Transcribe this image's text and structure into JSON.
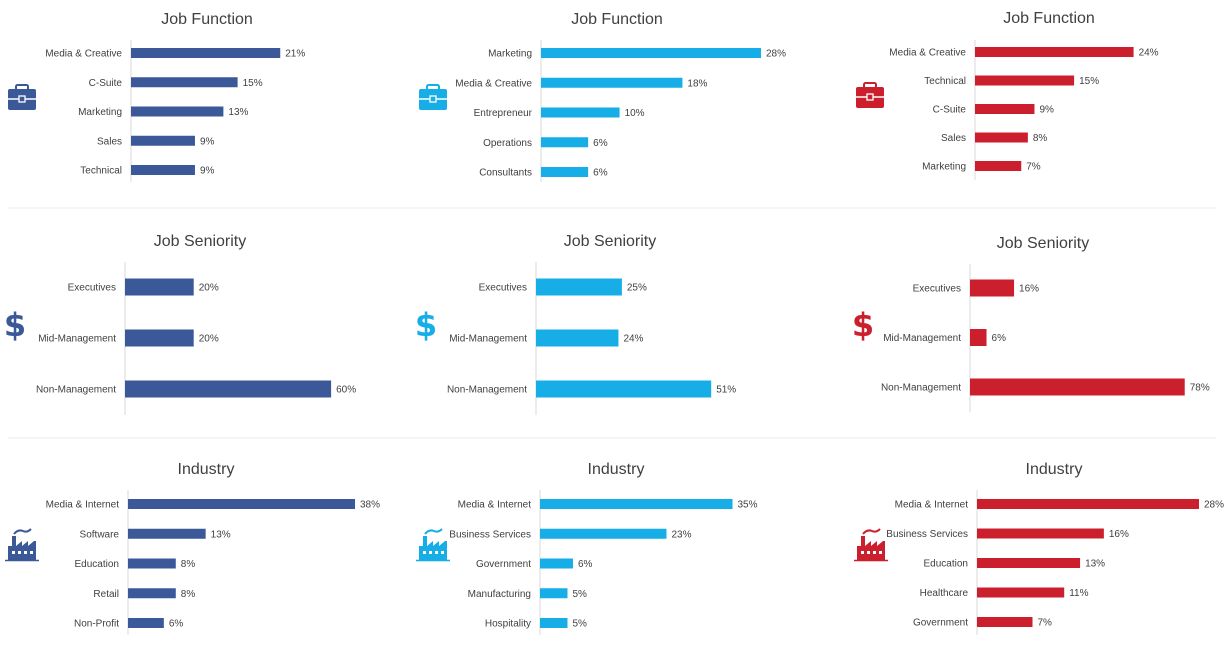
{
  "colors": {
    "navy": "#3b5998",
    "sky": "#17aee8",
    "red": "#cc1f2d"
  },
  "chart_data": [
    {
      "type": "bar",
      "orientation": "horizontal",
      "title": "Job Function",
      "icon": "briefcase-icon",
      "color": "#3b5998",
      "categories": [
        "Media & Creative",
        "C-Suite",
        "Marketing",
        "Sales",
        "Technical"
      ],
      "values": [
        21,
        15,
        13,
        9,
        9
      ],
      "value_labels": [
        "21%",
        "15%",
        "13%",
        "9%",
        "9%"
      ],
      "xlim": [
        0,
        28
      ]
    },
    {
      "type": "bar",
      "orientation": "horizontal",
      "title": "Job Function",
      "icon": "briefcase-icon",
      "color": "#17aee8",
      "categories": [
        "Marketing",
        "Media & Creative",
        "Entrepreneur",
        "Operations",
        "Consultants"
      ],
      "values": [
        28,
        18,
        10,
        6,
        6
      ],
      "value_labels": [
        "28%",
        "18%",
        "10%",
        "6%",
        "6%"
      ],
      "xlim": [
        0,
        28
      ]
    },
    {
      "type": "bar",
      "orientation": "horizontal",
      "title": "Job Function",
      "icon": "briefcase-icon",
      "color": "#cc1f2d",
      "categories": [
        "Media & Creative",
        "Technical",
        "C-Suite",
        "Sales",
        "Marketing"
      ],
      "values": [
        24,
        15,
        9,
        8,
        7
      ],
      "value_labels": [
        "24%",
        "15%",
        "9%",
        "8%",
        "7%"
      ],
      "xlim": [
        0,
        28
      ]
    },
    {
      "type": "bar",
      "orientation": "horizontal",
      "title": "Job Seniority",
      "icon": "dollar-icon",
      "color": "#3b5998",
      "categories": [
        "Executives",
        "Mid-Management",
        "Non-Management"
      ],
      "values": [
        20,
        20,
        60
      ],
      "value_labels": [
        "20%",
        "20%",
        "60%"
      ],
      "xlim": [
        0,
        85
      ]
    },
    {
      "type": "bar",
      "orientation": "horizontal",
      "title": "Job Seniority",
      "icon": "dollar-icon",
      "color": "#17aee8",
      "categories": [
        "Executives",
        "Mid-Management",
        "Non-Management"
      ],
      "values": [
        25,
        24,
        51
      ],
      "value_labels": [
        "25%",
        "24%",
        "51%"
      ],
      "xlim": [
        0,
        85
      ]
    },
    {
      "type": "bar",
      "orientation": "horizontal",
      "title": "Job Seniority",
      "icon": "dollar-icon",
      "color": "#cc1f2d",
      "categories": [
        "Executives",
        "Mid-Management",
        "Non-Management"
      ],
      "values": [
        16,
        6,
        78
      ],
      "value_labels": [
        "16%",
        "6%",
        "78%"
      ],
      "xlim": [
        0,
        85
      ]
    },
    {
      "type": "bar",
      "orientation": "horizontal",
      "title": "Industry",
      "icon": "factory-icon",
      "color": "#3b5998",
      "categories": [
        "Media & Internet",
        "Software",
        "Education",
        "Retail",
        "Non-Profit"
      ],
      "values": [
        38,
        13,
        8,
        8,
        6
      ],
      "value_labels": [
        "38%",
        "13%",
        "8%",
        "8%",
        "6%"
      ],
      "xlim": [
        0,
        38
      ]
    },
    {
      "type": "bar",
      "orientation": "horizontal",
      "title": "Industry",
      "icon": "factory-icon",
      "color": "#17aee8",
      "categories": [
        "Media & Internet",
        "Business Services",
        "Government",
        "Manufacturing",
        "Hospitality"
      ],
      "values": [
        35,
        23,
        6,
        5,
        5
      ],
      "value_labels": [
        "35%",
        "23%",
        "6%",
        "5%",
        "5%"
      ],
      "xlim": [
        0,
        38
      ]
    },
    {
      "type": "bar",
      "orientation": "horizontal",
      "title": "Industry",
      "icon": "factory-icon",
      "color": "#cc1f2d",
      "categories": [
        "Media & Internet",
        "Business Services",
        "Education",
        "Healthcare",
        "Government"
      ],
      "values": [
        28,
        16,
        13,
        11,
        7
      ],
      "value_labels": [
        "28%",
        "16%",
        "13%",
        "11%",
        "7%"
      ],
      "xlim": [
        0,
        28
      ]
    }
  ]
}
